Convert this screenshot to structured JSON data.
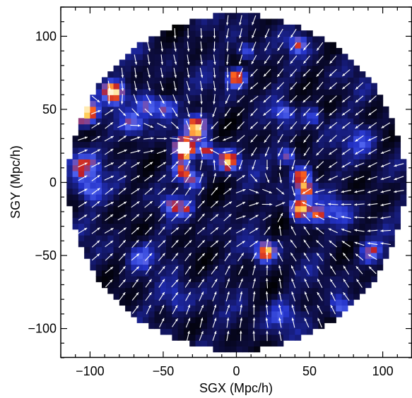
{
  "chart_data": {
    "type": "heatmap",
    "title": "",
    "xlabel": "SGX (Mpc/h)",
    "ylabel": "SGY (Mpc/h)",
    "xlim": [
      -120,
      120
    ],
    "ylim": [
      -120,
      120
    ],
    "x_ticks": [
      -100,
      -50,
      0,
      50,
      100
    ],
    "y_ticks": [
      -100,
      -50,
      0,
      50,
      100
    ],
    "x_tick_labels": [
      "−100",
      "−50",
      "0",
      "50",
      "100"
    ],
    "y_tick_labels": [
      "−100",
      "−50",
      "0",
      "50",
      "100"
    ],
    "grid": false,
    "survey_radius": 115,
    "colormap": [
      "#000000",
      "#14146e",
      "#2a3cd8",
      "#5a6cf0",
      "#c81e1e",
      "#ff6a1a",
      "#ffd35a",
      "#ffffff"
    ],
    "arrow_color": "#ffffff",
    "density_peaks": [
      {
        "x": -103,
        "y": 48,
        "amp": 1.0,
        "sigma": 5.5
      },
      {
        "x": -84,
        "y": 62,
        "amp": 1.0,
        "sigma": 5
      },
      {
        "x": -105,
        "y": 12,
        "amp": 0.55,
        "sigma": 7
      },
      {
        "x": -100,
        "y": -5,
        "amp": 0.4,
        "sigma": 6
      },
      {
        "x": -60,
        "y": 52,
        "amp": 0.5,
        "sigma": 5
      },
      {
        "x": -48,
        "y": 52,
        "amp": 0.5,
        "sigma": 5
      },
      {
        "x": -70,
        "y": 40,
        "amp": 0.45,
        "sigma": 5
      },
      {
        "x": -28,
        "y": 38,
        "amp": 1.0,
        "sigma": 5
      },
      {
        "x": -37,
        "y": 25,
        "amp": 0.7,
        "sigma": 4
      },
      {
        "x": -35,
        "y": 22,
        "amp": 0.9,
        "sigma": 4
      },
      {
        "x": -20,
        "y": 22,
        "amp": 0.6,
        "sigma": 4
      },
      {
        "x": -5,
        "y": 15,
        "amp": 1.0,
        "sigma": 4.5
      },
      {
        "x": -37,
        "y": 8,
        "amp": 0.8,
        "sigma": 4
      },
      {
        "x": -30,
        "y": 2,
        "amp": 0.6,
        "sigma": 4
      },
      {
        "x": -44,
        "y": -15,
        "amp": 0.55,
        "sigma": 4
      },
      {
        "x": -35,
        "y": -18,
        "amp": 0.4,
        "sigma": 4
      },
      {
        "x": 0,
        "y": 72,
        "amp": 0.95,
        "sigma": 4
      },
      {
        "x": 7,
        "y": 90,
        "amp": 0.5,
        "sigma": 3.5
      },
      {
        "x": 42,
        "y": 95,
        "amp": 0.55,
        "sigma": 4
      },
      {
        "x": 88,
        "y": 88,
        "amp": 0.5,
        "sigma": 3
      },
      {
        "x": 35,
        "y": 18,
        "amp": 0.55,
        "sigma": 4
      },
      {
        "x": 45,
        "y": 5,
        "amp": 0.85,
        "sigma": 4
      },
      {
        "x": 47,
        "y": -5,
        "amp": 0.9,
        "sigma": 4
      },
      {
        "x": 43,
        "y": -18,
        "amp": 1.0,
        "sigma": 4.5
      },
      {
        "x": 56,
        "y": -22,
        "amp": 0.6,
        "sigma": 4
      },
      {
        "x": 20,
        "y": -47,
        "amp": 0.95,
        "sigma": 4.5
      },
      {
        "x": 32,
        "y": 48,
        "amp": 0.45,
        "sigma": 4
      },
      {
        "x": 52,
        "y": 45,
        "amp": 0.4,
        "sigma": 4
      },
      {
        "x": 92,
        "y": -48,
        "amp": 0.6,
        "sigma": 5
      },
      {
        "x": 72,
        "y": -85,
        "amp": 0.55,
        "sigma": 5
      },
      {
        "x": -65,
        "y": -50,
        "amp": 0.35,
        "sigma": 6
      },
      {
        "x": -40,
        "y": -80,
        "amp": 0.3,
        "sigma": 7
      },
      {
        "x": 30,
        "y": -90,
        "amp": 0.3,
        "sigma": 7
      },
      {
        "x": 85,
        "y": 30,
        "amp": 0.3,
        "sigma": 7
      },
      {
        "x": 70,
        "y": -20,
        "amp": 0.35,
        "sigma": 6
      }
    ]
  }
}
